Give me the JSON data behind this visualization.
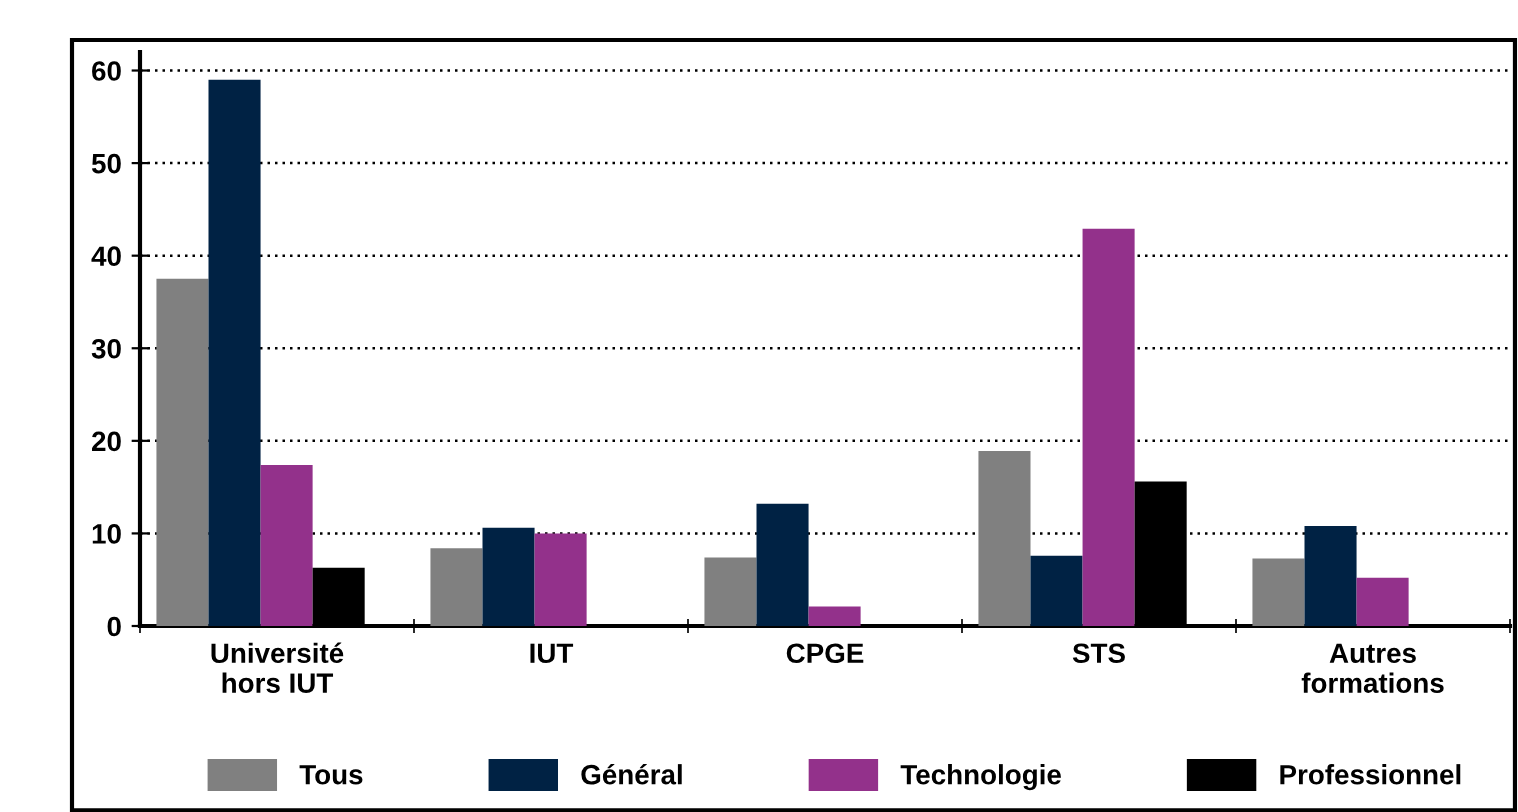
{
  "chart_data": {
    "type": "bar",
    "categories": [
      "Université\nhors IUT",
      "IUT",
      "CPGE",
      "STS",
      "Autres\nformations"
    ],
    "series": [
      {
        "name": "Tous",
        "color": "#808080",
        "values": [
          37.5,
          8.4,
          7.4,
          18.9,
          7.3
        ]
      },
      {
        "name": "Général",
        "color": "#002244",
        "values": [
          59,
          10.6,
          13.2,
          7.6,
          10.8
        ]
      },
      {
        "name": "Technologie",
        "color": "#93318b",
        "values": [
          17.4,
          10.0,
          2.1,
          42.9,
          5.2
        ]
      },
      {
        "name": "Professionnel",
        "color": "#000000",
        "values": [
          6.3,
          null,
          null,
          15.6,
          null
        ]
      }
    ],
    "ylim": [
      0,
      62
    ],
    "yticks": [
      0,
      10,
      20,
      30,
      40,
      50,
      60
    ],
    "grid": "y",
    "legend": "bottom"
  }
}
